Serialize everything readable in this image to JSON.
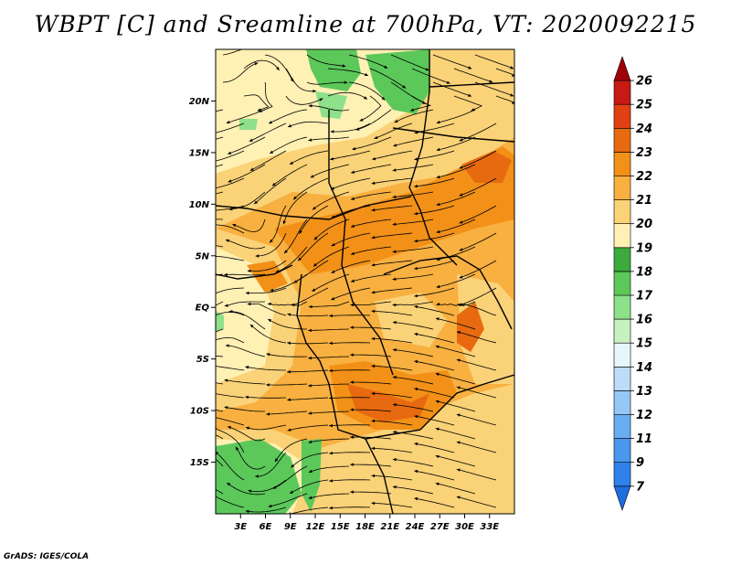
{
  "title": "WBPT [C] and Sreamline at 700hPa, VT: 2020092215",
  "credit": "GrADS: IGES/COLA",
  "map": {
    "lon_range": [
      0,
      36
    ],
    "lat_range": [
      -20,
      25
    ],
    "lat_ticks": [
      {
        "value": 20,
        "label": "20N"
      },
      {
        "value": 15,
        "label": "15N"
      },
      {
        "value": 10,
        "label": "10N"
      },
      {
        "value": 5,
        "label": "5N"
      },
      {
        "value": 0,
        "label": "EQ"
      },
      {
        "value": -5,
        "label": "5S"
      },
      {
        "value": -10,
        "label": "10S"
      },
      {
        "value": -15,
        "label": "15S"
      }
    ],
    "lon_ticks": [
      {
        "value": 3,
        "label": "3E"
      },
      {
        "value": 6,
        "label": "6E"
      },
      {
        "value": 9,
        "label": "9E"
      },
      {
        "value": 12,
        "label": "12E"
      },
      {
        "value": 15,
        "label": "15E"
      },
      {
        "value": 18,
        "label": "18E"
      },
      {
        "value": 21,
        "label": "21E"
      },
      {
        "value": 24,
        "label": "24E"
      },
      {
        "value": 27,
        "label": "27E"
      },
      {
        "value": 30,
        "label": "30E"
      },
      {
        "value": 33,
        "label": "33E"
      }
    ]
  },
  "colorbar": {
    "labels": [
      "7",
      "9",
      "11",
      "12",
      "13",
      "14",
      "15",
      "16",
      "17",
      "18",
      "19",
      "20",
      "21",
      "22",
      "23",
      "24",
      "25",
      "26"
    ],
    "colors": [
      "#1e6ee0",
      "#2e82ea",
      "#4a98ee",
      "#6aaef2",
      "#96c8f6",
      "#bcdcfa",
      "#e6f6fa",
      "#c8f0c0",
      "#8ee08a",
      "#5cc85a",
      "#3caa3c",
      "#fff0b4",
      "#fad278",
      "#f8b040",
      "#f29018",
      "#e86a10",
      "#e04012",
      "#c81a14",
      "#a0000a"
    ]
  },
  "legend_colors": {
    "green": "#5cc85a",
    "pale_yellow": "#fff0b4",
    "light_orange": "#fad278",
    "orange": "#f8b040",
    "dark_orange": "#f29018",
    "red_orange": "#e86a10"
  }
}
